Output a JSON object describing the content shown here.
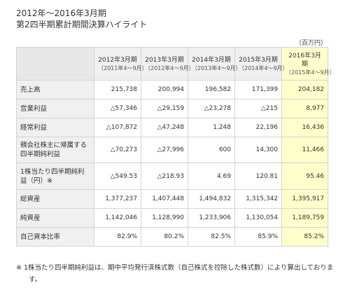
{
  "title": {
    "line1": "2012年～2016年3月期",
    "line2": "第2四半期累計期間決算ハイライト"
  },
  "unit": "（百万円）",
  "columns": [
    {
      "year": "2012年3月期",
      "period": "（2011年4～9月）"
    },
    {
      "year": "2013年3月期",
      "period": "（2012年4～9月）"
    },
    {
      "year": "2014年3月期",
      "period": "（2013年4～9月）"
    },
    {
      "year": "2015年3月期",
      "period": "（2014年4～9月）"
    },
    {
      "year": "2016年3月期",
      "period": "（2015年4～9月）"
    }
  ],
  "highlight_color": "#ffffcc",
  "rows": [
    {
      "label": "売上高",
      "values": [
        "215,738",
        "200,994",
        "196,582",
        "171,399",
        "204,182"
      ]
    },
    {
      "label": "営業利益",
      "values": [
        "△57,346",
        "△29,159",
        "△23,278",
        "△215",
        "8,977"
      ]
    },
    {
      "label": "経常利益",
      "values": [
        "△107,872",
        "△47,248",
        "1,248",
        "22,196",
        "16,436"
      ]
    },
    {
      "label": "親会社株主に帰属する四半期純利益",
      "values": [
        "△70,273",
        "△27,996",
        "600",
        "14,300",
        "11,466"
      ]
    },
    {
      "label": "1株当たり四半期純利益（円）※",
      "values": [
        "△549.53",
        "△218.93",
        "4.69",
        "120.81",
        "95.46"
      ]
    },
    {
      "label": "総資産",
      "values": [
        "1,377,237",
        "1,407,448",
        "1,494,832",
        "1,315,342",
        "1,395,917"
      ]
    },
    {
      "label": "純資産",
      "values": [
        "1,142,046",
        "1,128,990",
        "1,233,906",
        "1,130,054",
        "1,189,759"
      ]
    },
    {
      "label": "自己資本比率",
      "values": [
        "82.9%",
        "80.2%",
        "82.5%",
        "85.9%",
        "85.2%"
      ]
    }
  ],
  "note": "※ 1株当たり四半期純利益は、期中平均発行済株式数（自己株式を控除した株式数）により算出しております。"
}
